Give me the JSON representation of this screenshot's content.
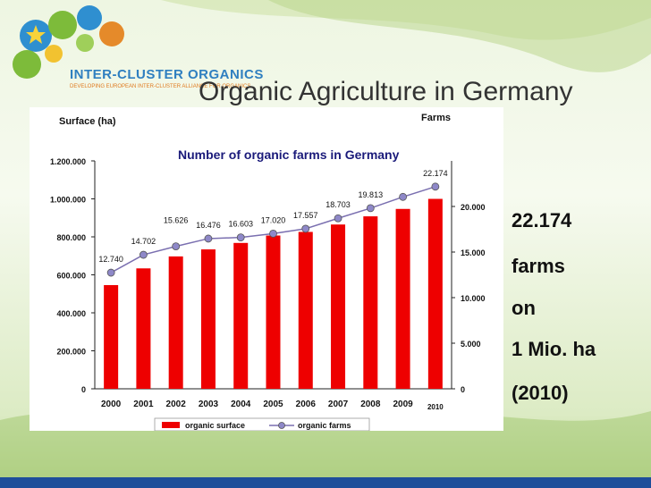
{
  "slide": {
    "title": "Organic Agriculture in Germany",
    "logo_text": "INTER-CLUSTER ORGANICS",
    "logo_subtitle": "DEVELOPING EUROPEAN INTER-CLUSTER ALLIANCE FOR ORGANICS",
    "side_text": [
      "22.174",
      "farms",
      "on",
      "1 Mio. ha",
      "(2010)"
    ]
  },
  "colors": {
    "bars": "#ee0000",
    "line": "#7a6fb0",
    "marker": "#8e88c8",
    "title_text": "#1a1a7a"
  },
  "chart_data": {
    "type": "bar",
    "title": "Number of organic farms in Germany",
    "ylabel": "Surface (ha)",
    "y2label": "Farms",
    "categories": [
      "2000",
      "2001",
      "2002",
      "2003",
      "2004",
      "2005",
      "2006",
      "2007",
      "2008",
      "2009",
      "2010"
    ],
    "ylim": [
      0,
      1200000
    ],
    "y2lim": [
      0,
      25000
    ],
    "yticks": [
      "1.200.000",
      "1.000.000",
      "800.000",
      "600.000",
      "400.000",
      "200.000",
      "0"
    ],
    "y2ticks": [
      "20.000",
      "15.000",
      "10.000",
      "5.000",
      "0"
    ],
    "grid": false,
    "legend": "bottom",
    "series": [
      {
        "name": "organic surface",
        "type": "bar",
        "axis": "left",
        "values": [
          546000,
          634000,
          697000,
          734000,
          768000,
          807000,
          826000,
          865000,
          908000,
          947000,
          1000000
        ]
      },
      {
        "name": "organic farms",
        "type": "line",
        "axis": "right",
        "values": [
          12740,
          14702,
          15626,
          16476,
          16603,
          17020,
          17557,
          18703,
          19813,
          21047,
          22174
        ],
        "labels": [
          "12.740",
          "14.702",
          "15.626",
          "16.476",
          "16.603",
          "17.020",
          "17.557",
          "18.703",
          "19.813",
          "",
          "22.174"
        ]
      }
    ]
  }
}
